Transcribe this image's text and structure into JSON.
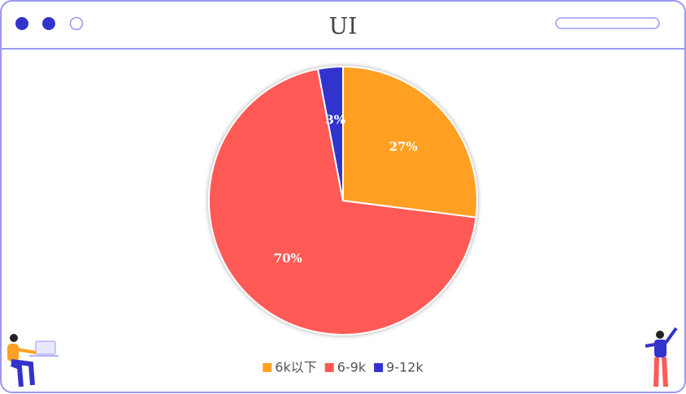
{
  "chart_data": {
    "type": "pie",
    "title": "UI",
    "categories": [
      "6k以下",
      "6-9k",
      "9-12k"
    ],
    "values": [
      27,
      70,
      3
    ],
    "value_labels": [
      "27%",
      "70%",
      "3%"
    ],
    "colors": [
      "#ffa022",
      "#ff5a55",
      "#3333cc"
    ],
    "legend": "bottom"
  }
}
